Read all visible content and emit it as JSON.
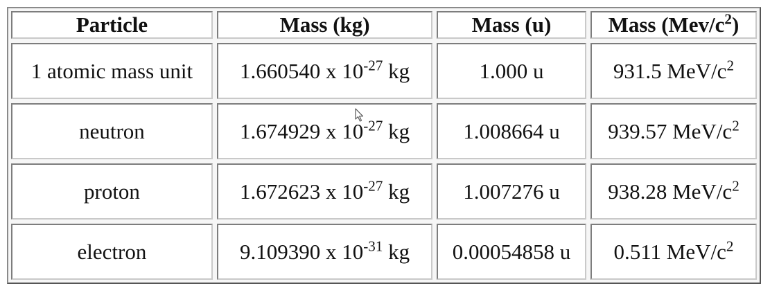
{
  "table": {
    "headers": {
      "particle": "Particle",
      "mass_kg": "Mass (kg)",
      "mass_u": "Mass (u)",
      "mass_mev_base": "Mass (Mev/c",
      "mass_mev_exp": "2",
      "mass_mev_tail": ")"
    },
    "rows": [
      {
        "particle": "1 atomic mass unit",
        "kg_mantissa": "1.660540 x 10",
        "kg_exp": "-27",
        "kg_unit": " kg",
        "u": "1.000 u",
        "mev_base": "931.5 MeV/c",
        "mev_exp": "2"
      },
      {
        "particle": "neutron",
        "kg_mantissa": "1.674929 x 10",
        "kg_exp": "-27",
        "kg_unit": " kg",
        "u": "1.008664 u",
        "mev_base": "939.57 MeV/c",
        "mev_exp": "2"
      },
      {
        "particle": "proton",
        "kg_mantissa": "1.672623 x 10",
        "kg_exp": "-27",
        "kg_unit": " kg",
        "u": "1.007276 u",
        "mev_base": "938.28 MeV/c",
        "mev_exp": "2"
      },
      {
        "particle": "electron",
        "kg_mantissa": "9.109390 x 10",
        "kg_exp": "-31",
        "kg_unit": " kg",
        "u": "0.00054858 u",
        "mev_base": "0.511 MeV/c",
        "mev_exp": "2"
      }
    ]
  },
  "cursor_icon": "mouse-pointer-icon"
}
